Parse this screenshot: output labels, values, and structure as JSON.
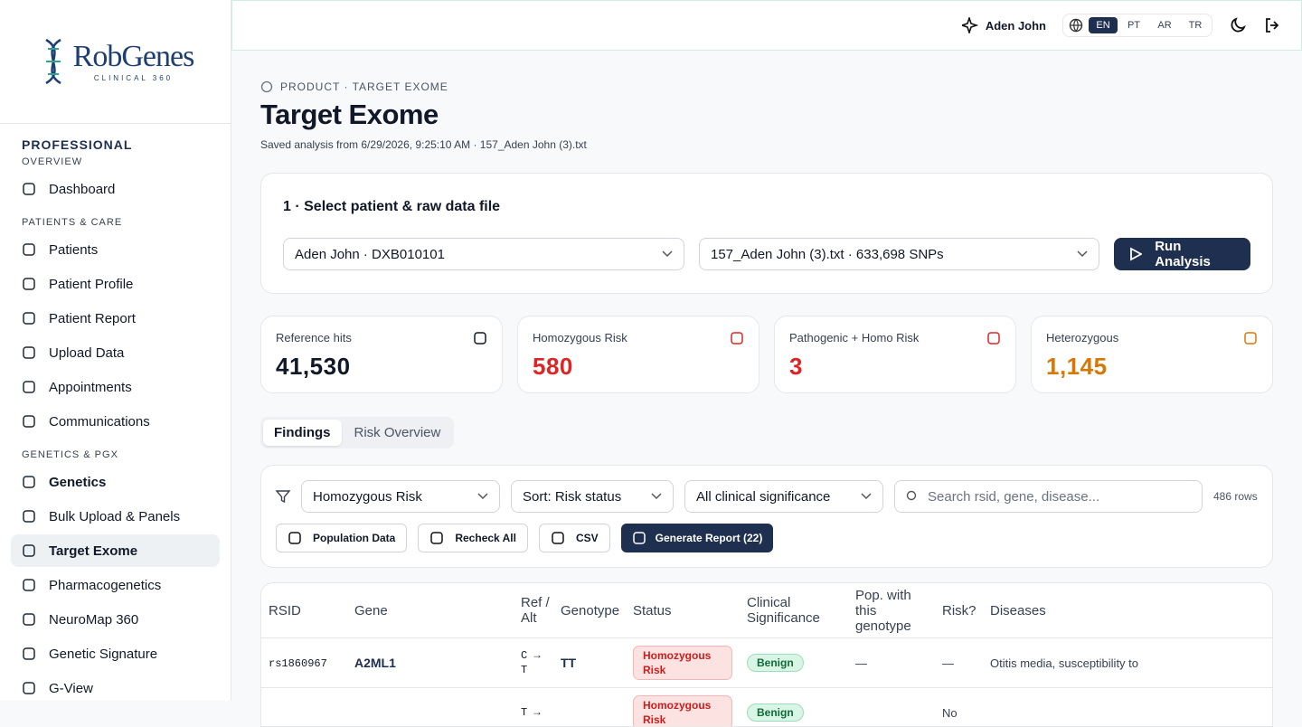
{
  "topbar": {
    "user": "Aden John",
    "languages": [
      "EN",
      "PT",
      "AR",
      "TR"
    ],
    "active_language": "EN"
  },
  "sidebar": {
    "logo": {
      "name": "RobGenes",
      "tagline": "CLINICAL 360"
    },
    "section": "PROFESSIONAL",
    "active": "Target Exome",
    "groups": [
      {
        "label": "OVERVIEW",
        "items": [
          "Dashboard"
        ]
      },
      {
        "label": "PATIENTS & CARE",
        "items": [
          "Patients",
          "Patient Profile",
          "Patient Report",
          "Upload Data",
          "Appointments",
          "Communications"
        ]
      },
      {
        "label": "GENETICS & PGX",
        "items": [
          "Genetics",
          "Bulk Upload & Panels",
          "Target Exome",
          "Pharmacogenetics",
          "NeuroMap 360",
          "Genetic Signature",
          "G-View"
        ]
      }
    ]
  },
  "header": {
    "breadcrumb": "PRODUCT · TARGET EXOME",
    "title": "Target Exome",
    "subtitle": "Saved analysis from 6/29/2026, 9:25:10 AM · 157_Aden John (3).txt"
  },
  "selection": {
    "title": "1 · Select patient & raw data file",
    "patient": "Aden John · DXB010101",
    "file": "157_Aden John (3).txt · 633,698 SNPs",
    "button": "Run Analysis"
  },
  "stats": [
    {
      "label": "Reference hits",
      "value": "41,530"
    },
    {
      "label": "Homozygous Risk",
      "value": "580"
    },
    {
      "label": "Pathogenic + Homo Risk",
      "value": "3"
    },
    {
      "label": "Heterozygous",
      "value": "1,145"
    }
  ],
  "tabs": {
    "items": [
      "Findings",
      "Risk Overview"
    ],
    "active": 0
  },
  "filters": {
    "status": "Homozygous Risk",
    "sort": "Sort: Risk status",
    "significance": "All clinical significance",
    "search_placeholder": "Search rsid, gene, disease...",
    "row_count": "486 rows",
    "buttons": [
      "Population Data",
      "Recheck All",
      "CSV",
      "Generate Report (22)"
    ]
  },
  "table": {
    "columns": [
      "RSID",
      "Gene",
      "Ref / Alt",
      "Genotype",
      "Status",
      "Clinical Significance",
      "Pop. with this genotype",
      "Risk?",
      "Diseases"
    ],
    "rows": [
      [
        "rs1860967",
        "A2ML1",
        "C → T",
        "TT",
        "Homozygous Risk",
        "Benign",
        "—",
        "—",
        "Otitis media, susceptibility to"
      ],
      [
        "",
        "",
        "T →",
        "",
        "Homozygous Risk",
        "Benign",
        "",
        "No",
        ""
      ]
    ]
  }
}
